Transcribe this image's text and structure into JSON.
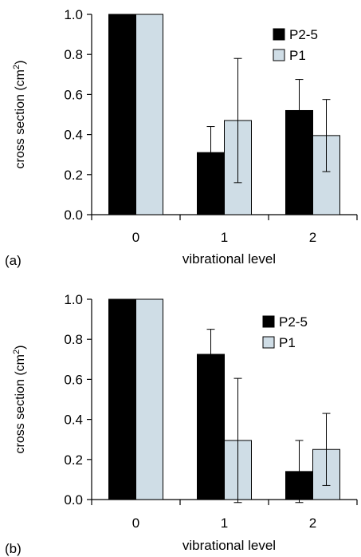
{
  "chart_data": [
    {
      "type": "bar",
      "panel_label": "(a)",
      "xlabel": "vibrational level",
      "ylabel": "cross section (cm",
      "ylabel_sup": "2",
      "ylabel_close": ")",
      "categories": [
        "0",
        "1",
        "2"
      ],
      "ylim": [
        0,
        1.0
      ],
      "yticks": [
        "0.0",
        "0.2",
        "0.4",
        "0.6",
        "0.8",
        "1.0"
      ],
      "legend_position": "top-right",
      "series": [
        {
          "name": "P2-5",
          "color": "#000000",
          "values": [
            1.0,
            0.31,
            0.52
          ],
          "errors": [
            0,
            0.13,
            0.155
          ]
        },
        {
          "name": "P1",
          "color": "#cfdde6",
          "values": [
            1.0,
            0.47,
            0.395
          ],
          "errors": [
            0,
            0.31,
            0.18
          ]
        }
      ]
    },
    {
      "type": "bar",
      "panel_label": "(b)",
      "xlabel": "vibrational level",
      "ylabel": "cross section (cm",
      "ylabel_sup": "2",
      "ylabel_close": ")",
      "categories": [
        "0",
        "1",
        "2"
      ],
      "ylim": [
        0,
        1.0
      ],
      "yticks": [
        "0.0",
        "0.2",
        "0.4",
        "0.6",
        "0.8",
        "1.0"
      ],
      "legend_position": "top-right",
      "series": [
        {
          "name": "P2-5",
          "color": "#000000",
          "values": [
            1.0,
            0.725,
            0.14
          ],
          "errors": [
            0,
            0.125,
            0.155
          ]
        },
        {
          "name": "P1",
          "color": "#cfdde6",
          "values": [
            1.0,
            0.295,
            0.25
          ],
          "errors": [
            0,
            0.31,
            0.18
          ]
        }
      ]
    }
  ]
}
